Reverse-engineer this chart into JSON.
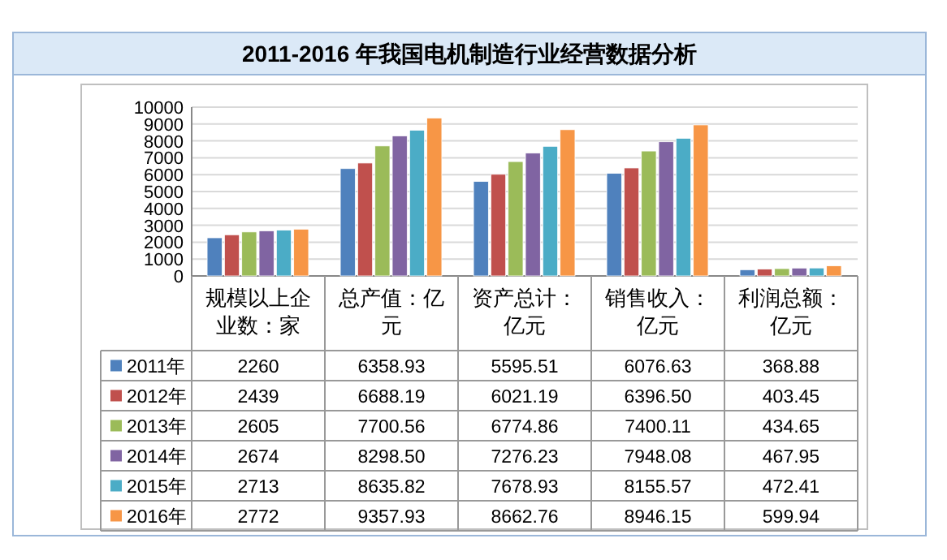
{
  "chart_data": {
    "type": "bar",
    "title": "2011-2016 年我国电机制造行业经营数据分析",
    "categories": [
      "规模以上企业数：家",
      "总产值：亿元",
      "资产总计：亿元",
      "销售收入：亿元",
      "利润总额：亿元"
    ],
    "series": [
      {
        "name": "2011年",
        "color": "#4f81bd",
        "values": [
          2260,
          6358.93,
          5595.51,
          6076.63,
          368.88
        ],
        "value_labels": [
          "2260",
          "6358.93",
          "5595.51",
          "6076.63",
          "368.88"
        ]
      },
      {
        "name": "2012年",
        "color": "#c0504d",
        "values": [
          2439,
          6688.19,
          6021.19,
          6396.5,
          403.45
        ],
        "value_labels": [
          "2439",
          "6688.19",
          "6021.19",
          "6396.50",
          "403.45"
        ]
      },
      {
        "name": "2013年",
        "color": "#9bbb59",
        "values": [
          2605,
          7700.56,
          6774.86,
          7400.11,
          434.65
        ],
        "value_labels": [
          "2605",
          "7700.56",
          "6774.86",
          "7400.11",
          "434.65"
        ]
      },
      {
        "name": "2014年",
        "color": "#8064a2",
        "values": [
          2674,
          8298.5,
          7276.23,
          7948.08,
          467.95
        ],
        "value_labels": [
          "2674",
          "8298.50",
          "7276.23",
          "7948.08",
          "467.95"
        ]
      },
      {
        "name": "2015年",
        "color": "#4bacc6",
        "values": [
          2713,
          8635.82,
          7678.93,
          8155.57,
          472.41
        ],
        "value_labels": [
          "2713",
          "8635.82",
          "7678.93",
          "8155.57",
          "472.41"
        ]
      },
      {
        "name": "2016年",
        "color": "#f79646",
        "values": [
          2772,
          9357.93,
          8662.76,
          8946.15,
          599.94
        ],
        "value_labels": [
          "2772",
          "9357.93",
          "8662.76",
          "8946.15",
          "599.94"
        ]
      }
    ],
    "ylim": [
      0,
      10000
    ],
    "yticks": [
      0,
      1000,
      2000,
      3000,
      4000,
      5000,
      6000,
      7000,
      8000,
      9000,
      10000
    ],
    "grid": "y",
    "legend": "bottom left"
  }
}
